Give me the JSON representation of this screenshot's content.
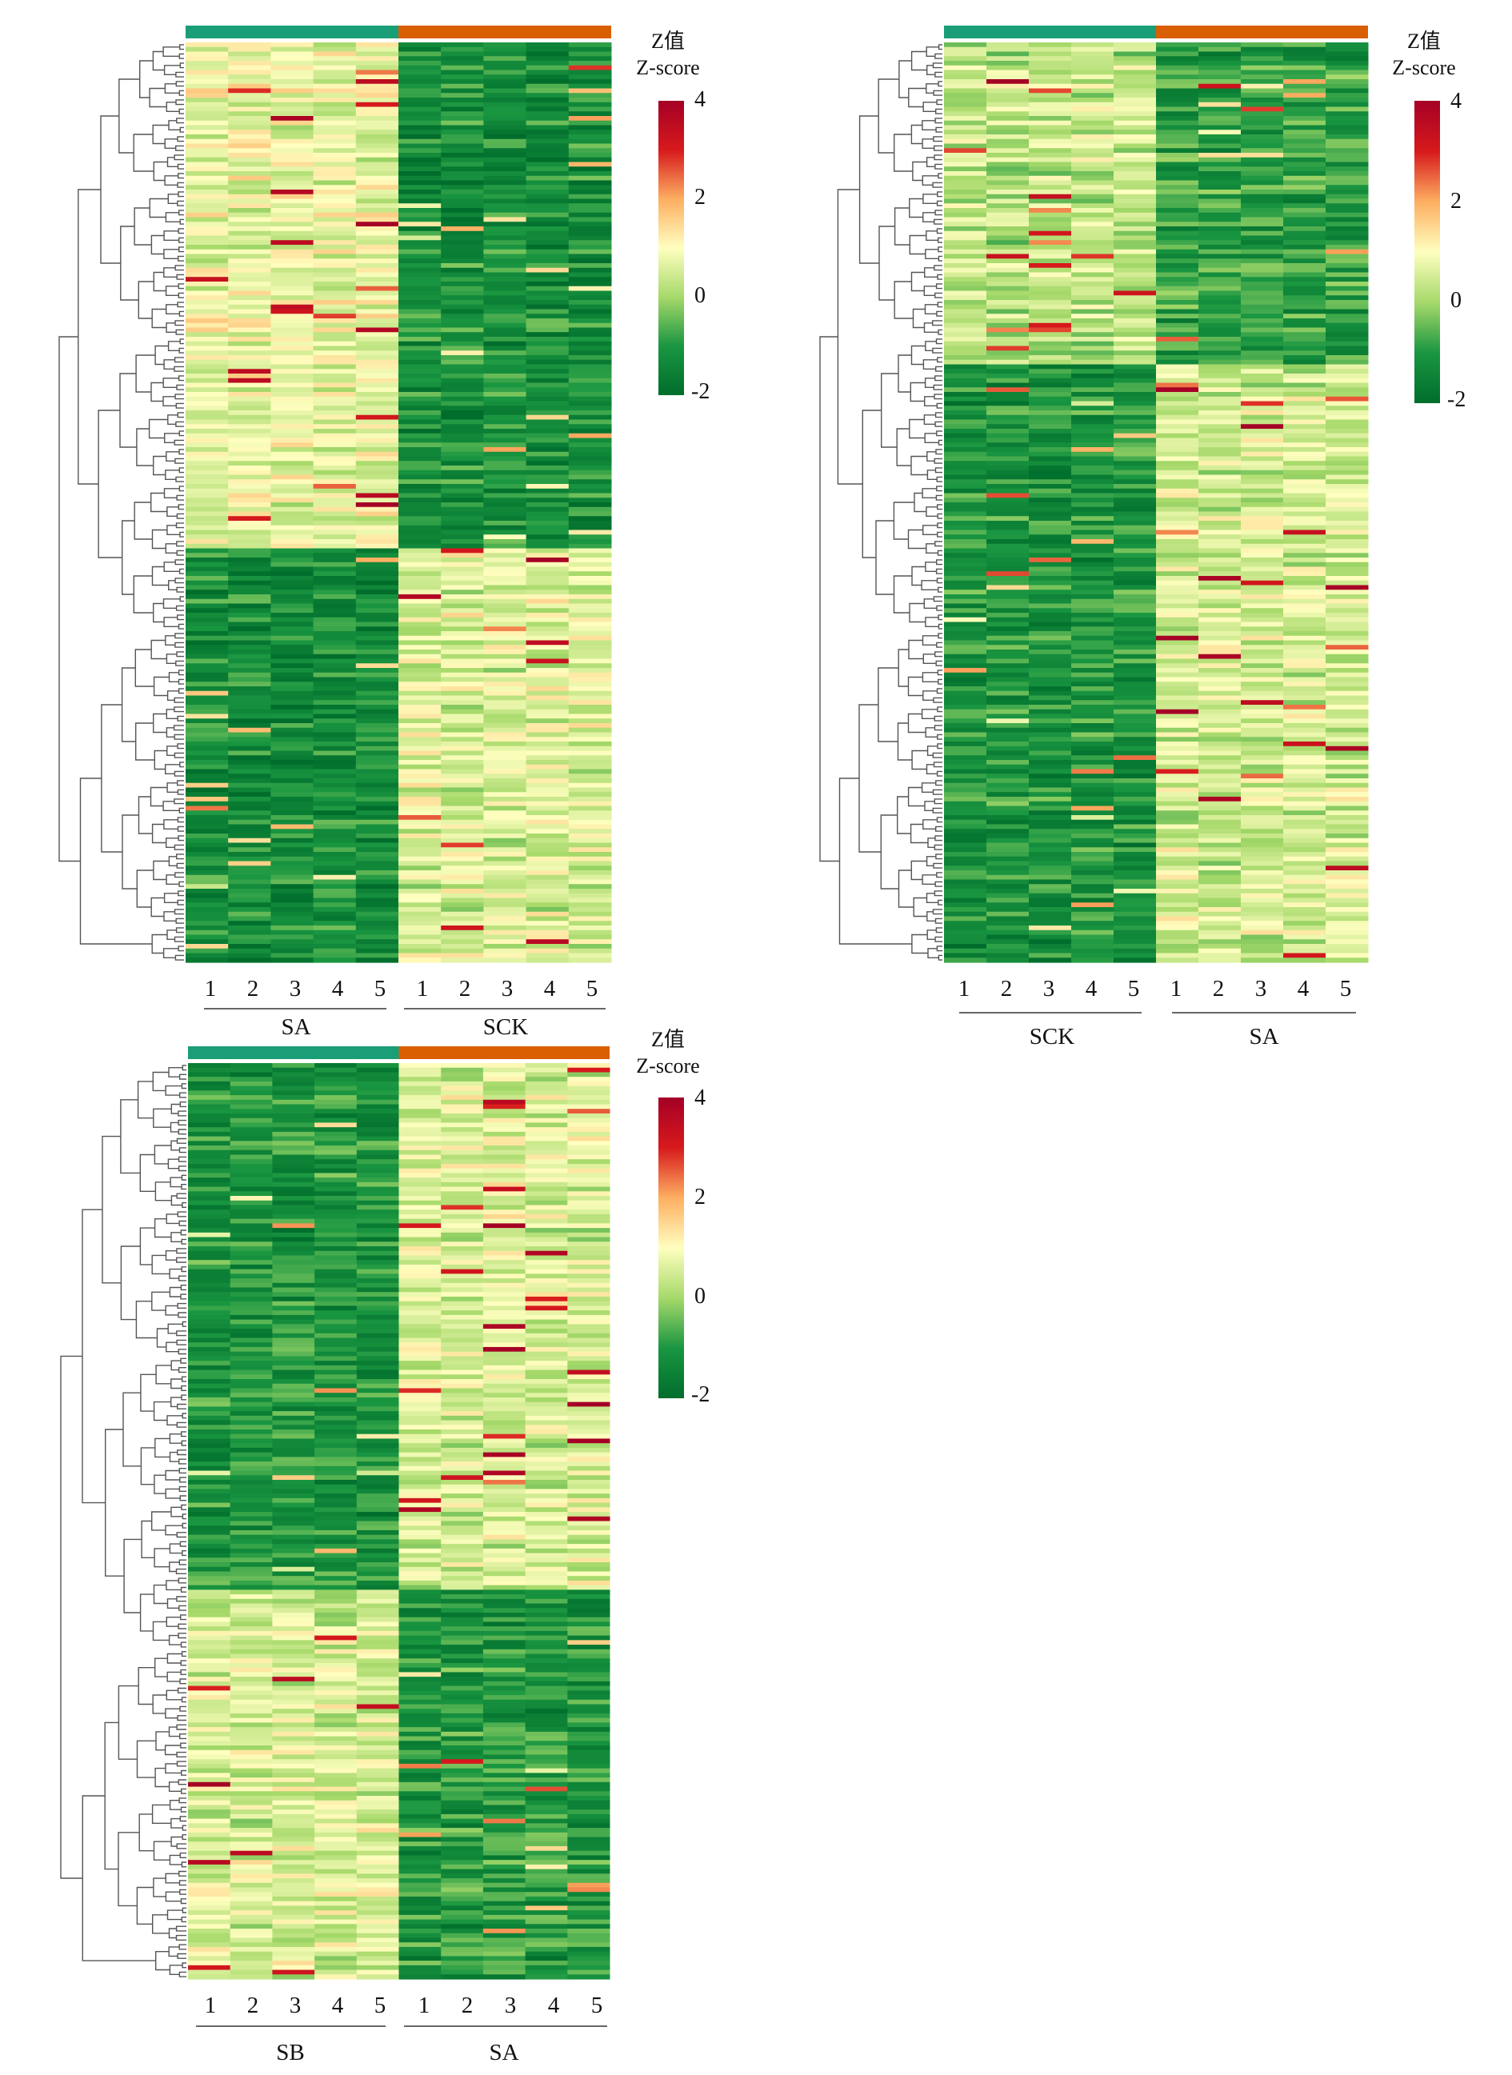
{
  "legend": {
    "title_cn": "Z值",
    "title_en": "Z-score",
    "ticks": [
      4,
      2,
      0,
      -2
    ],
    "range": [
      -2,
      4
    ],
    "colors": [
      "#006d2c",
      "#1a9641",
      "#a6d96a",
      "#ffffbf",
      "#fdae61",
      "#d7191c",
      "#a50026"
    ]
  },
  "colors": {
    "group_green": "#1a9e77",
    "group_orange": "#d95f02"
  },
  "panels": [
    {
      "id": "sa-vs-sck",
      "sample_labels": [
        "1",
        "2",
        "3",
        "4",
        "5",
        "1",
        "2",
        "3",
        "4",
        "5"
      ],
      "groups": [
        {
          "name": "SA",
          "color": "#1a9e77"
        },
        {
          "name": "SCK",
          "color": "#d95f02"
        }
      ],
      "n_rows": 200,
      "pattern": "up_then_down"
    },
    {
      "id": "sck-vs-sa",
      "sample_labels": [
        "1",
        "2",
        "3",
        "4",
        "5",
        "1",
        "2",
        "3",
        "4",
        "5"
      ],
      "groups": [
        {
          "name": "SCK",
          "color": "#1a9e77"
        },
        {
          "name": "SA",
          "color": "#d95f02"
        }
      ],
      "n_rows": 200,
      "pattern": "mixed_then_up"
    },
    {
      "id": "sb-vs-sa",
      "sample_labels": [
        "1",
        "2",
        "3",
        "4",
        "5",
        "1",
        "2",
        "3",
        "4",
        "5"
      ],
      "groups": [
        {
          "name": "SB",
          "color": "#1a9e77"
        },
        {
          "name": "SA",
          "color": "#d95f02"
        }
      ],
      "n_rows": 200,
      "pattern": "down_then_up"
    }
  ],
  "chart_data": [
    {
      "type": "heatmap",
      "title": "",
      "columns": [
        "SA-1",
        "SA-2",
        "SA-3",
        "SA-4",
        "SA-5",
        "SCK-1",
        "SCK-2",
        "SCK-3",
        "SCK-4",
        "SCK-5"
      ],
      "row_clusters": [
        {
          "rows": 110,
          "group1_mean_z": 0.8,
          "group2_mean_z": -1.2
        },
        {
          "rows": 90,
          "group1_mean_z": -1.3,
          "group2_mean_z": 0.6
        }
      ],
      "zlim": [
        -2,
        4
      ],
      "dendrogram": "rows"
    },
    {
      "type": "heatmap",
      "title": "",
      "columns": [
        "SCK-1",
        "SCK-2",
        "SCK-3",
        "SCK-4",
        "SCK-5",
        "SA-1",
        "SA-2",
        "SA-3",
        "SA-4",
        "SA-5"
      ],
      "row_clusters": [
        {
          "rows": 70,
          "group1_mean_z": 0.3,
          "group2_mean_z": -0.9
        },
        {
          "rows": 130,
          "group1_mean_z": -1.1,
          "group2_mean_z": 0.5
        }
      ],
      "zlim": [
        -2,
        4
      ],
      "dendrogram": "rows"
    },
    {
      "type": "heatmap",
      "title": "",
      "columns": [
        "SB-1",
        "SB-2",
        "SB-3",
        "SB-4",
        "SB-5",
        "SA-1",
        "SA-2",
        "SA-3",
        "SA-4",
        "SA-5"
      ],
      "row_clusters": [
        {
          "rows": 115,
          "group1_mean_z": -1.1,
          "group2_mean_z": 0.6
        },
        {
          "rows": 85,
          "group1_mean_z": 0.6,
          "group2_mean_z": -1.0
        }
      ],
      "zlim": [
        -2,
        4
      ],
      "dendrogram": "rows"
    }
  ]
}
